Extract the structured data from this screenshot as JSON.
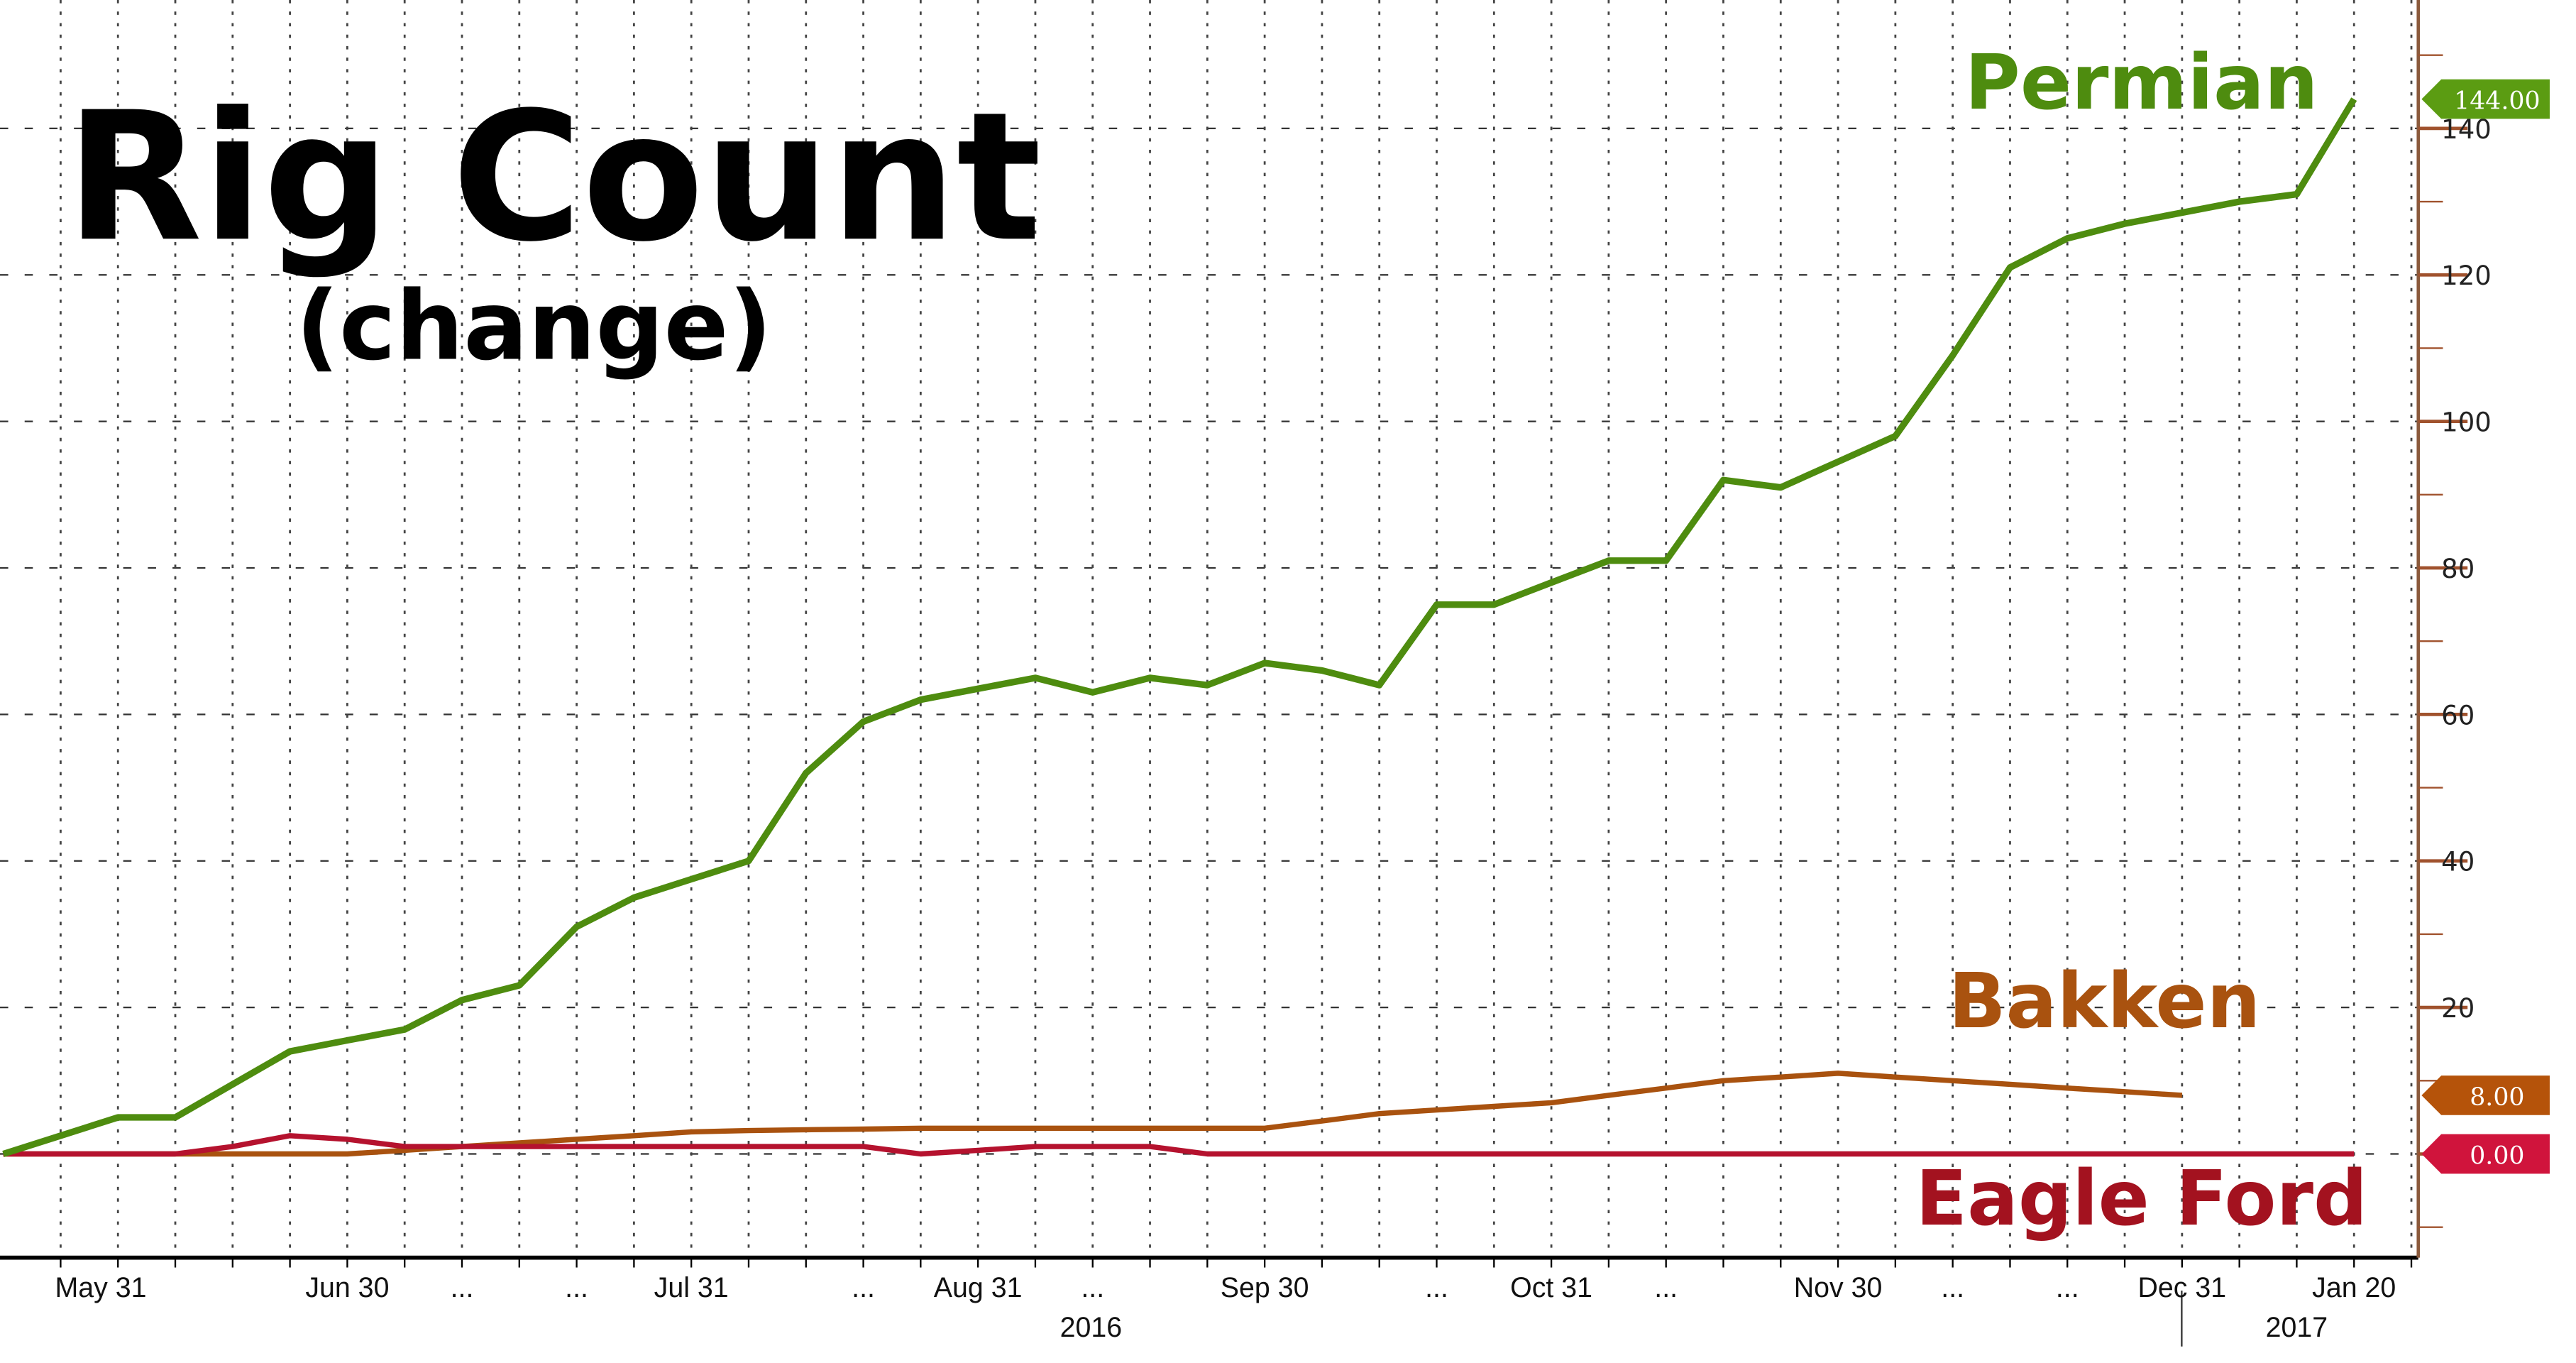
{
  "chart_data": {
    "type": "line",
    "title": "Rig Count",
    "subtitle": "(change)",
    "xlabel": "",
    "ylabel": "",
    "ylim": [
      -14,
      157
    ],
    "yticks": [
      20,
      40,
      60,
      80,
      100,
      120,
      140
    ],
    "grid": true,
    "x_note": "weekly observations, index 0..41",
    "x_tick_labels": [
      {
        "i": 1.7,
        "label": "May 31"
      },
      {
        "i": 6,
        "label": "Jun 30"
      },
      {
        "i": 8,
        "label": "..."
      },
      {
        "i": 10,
        "label": "..."
      },
      {
        "i": 12,
        "label": "Jul 31"
      },
      {
        "i": 15,
        "label": "..."
      },
      {
        "i": 17,
        "label": "Aug 31"
      },
      {
        "i": 19,
        "label": "..."
      },
      {
        "i": 22,
        "label": "Sep 30"
      },
      {
        "i": 25,
        "label": "..."
      },
      {
        "i": 27,
        "label": "Oct 31"
      },
      {
        "i": 29,
        "label": "..."
      },
      {
        "i": 32,
        "label": "Nov 30"
      },
      {
        "i": 34,
        "label": "..."
      },
      {
        "i": 36,
        "label": "..."
      },
      {
        "i": 38,
        "label": "Dec 31"
      },
      {
        "i": 41,
        "label": "Jan 20"
      }
    ],
    "year_labels": [
      {
        "i": 19,
        "label": "2016"
      },
      {
        "i": 40,
        "label": "2017"
      }
    ],
    "series": [
      {
        "name": "Permian",
        "color": "#4e8c0f",
        "tag_color": "#5b9c12",
        "last_label": "144.00",
        "values": [
          0,
          2.5,
          5,
          5,
          9.5,
          14,
          15.5,
          17,
          21,
          23,
          31,
          35,
          37.5,
          40,
          52,
          59,
          62,
          63.5,
          65,
          63,
          65,
          64,
          67,
          66,
          64,
          75,
          75,
          78,
          81,
          81,
          92,
          91,
          94.5,
          98,
          109,
          121,
          125,
          127,
          128.5,
          130,
          131,
          144
        ]
      },
      {
        "name": "Bakken",
        "color": "#a9520f",
        "tag_color": "#b5530a",
        "last_label": "8.00",
        "values": [
          0,
          0,
          0,
          0,
          0,
          0,
          0,
          0.5,
          1,
          1.5,
          2,
          2.5,
          3,
          3.2,
          3.3,
          3.4,
          3.5,
          3.5,
          3.5,
          3.5,
          3.5,
          3.5,
          3.5,
          4.5,
          5.5,
          6,
          6.5,
          7,
          8,
          9,
          10,
          10.5,
          11,
          10.5,
          10,
          9.5,
          9,
          8.5,
          8
        ]
      },
      {
        "name": "Eagle Ford",
        "color": "#b5122e",
        "tag_color": "#d0143c",
        "last_label": "0.00",
        "values": [
          0,
          0,
          0,
          0,
          1,
          2.5,
          2,
          1,
          1,
          1,
          1,
          1,
          1,
          1,
          1,
          1,
          0,
          0.5,
          1,
          1,
          1,
          0,
          0,
          0,
          0,
          0,
          0,
          0,
          0,
          0,
          0,
          0,
          0,
          0,
          0,
          0,
          0,
          0,
          0,
          0,
          0,
          0
        ]
      }
    ]
  }
}
